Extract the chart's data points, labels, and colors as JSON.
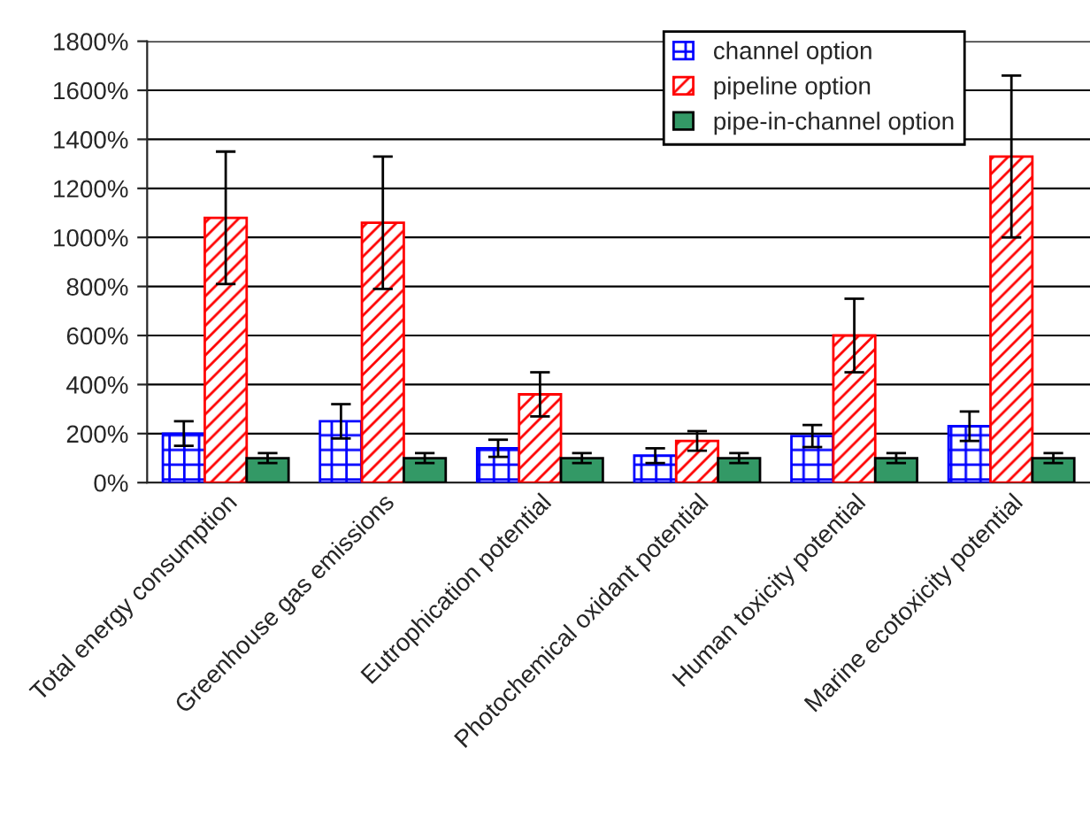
{
  "chart_data": {
    "type": "bar",
    "categories": [
      "Total energy consumption",
      "Greenhouse gas emissions",
      "Eutrophication potential",
      "Photochemical oxidant potential",
      "Human toxicity potential",
      "Marine ecotoxicity potential"
    ],
    "series": [
      {
        "name": "channel option",
        "color": "#0000ff",
        "values": [
          200,
          250,
          140,
          110,
          190,
          230
        ],
        "errors": [
          50,
          70,
          35,
          30,
          45,
          60
        ]
      },
      {
        "name": "pipeline option",
        "color": "#ff0000",
        "values": [
          1080,
          1060,
          360,
          170,
          600,
          1330
        ],
        "errors": [
          270,
          270,
          90,
          40,
          150,
          330
        ]
      },
      {
        "name": "pipe-in-channel option",
        "color": "#339966",
        "values": [
          100,
          100,
          100,
          100,
          100,
          100
        ],
        "errors": [
          20,
          20,
          20,
          20,
          20,
          20
        ]
      }
    ],
    "ylim": [
      0,
      1800
    ],
    "yticks": [
      {
        "value": 0,
        "label": "0%"
      },
      {
        "value": 200,
        "label": "200%"
      },
      {
        "value": 400,
        "label": "400%"
      },
      {
        "value": 600,
        "label": "600%"
      },
      {
        "value": 800,
        "label": "800%"
      },
      {
        "value": 1000,
        "label": "1000%"
      },
      {
        "value": 1200,
        "label": "1200%"
      },
      {
        "value": 1400,
        "label": "1400%"
      },
      {
        "value": 1600,
        "label": "1600%"
      },
      {
        "value": 1800,
        "label": "1800%"
      }
    ],
    "grid": "y",
    "legend": "top right"
  }
}
